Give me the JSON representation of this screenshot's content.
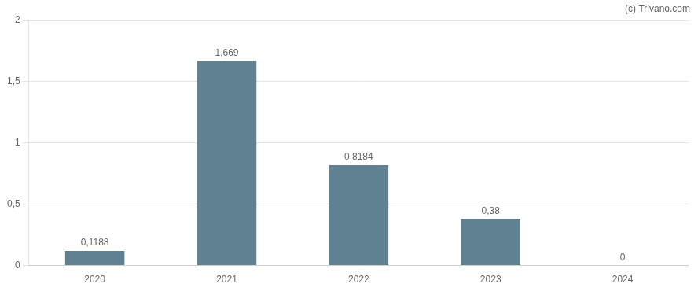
{
  "chart_data": {
    "type": "bar",
    "categories": [
      "2020",
      "2021",
      "2022",
      "2023",
      "2024"
    ],
    "values": [
      0.1188,
      1.669,
      0.8184,
      0.38,
      0
    ],
    "value_labels": [
      "0,1188",
      "1,669",
      "0,8184",
      "0,38",
      "0"
    ],
    "data_labels": true,
    "color": "#5f8191",
    "ylim": [
      0,
      2
    ],
    "yticks": [
      0,
      {
        "value": 0.5,
        "label": "0,5"
      },
      1,
      {
        "value": 1.5,
        "label": "1,5"
      },
      2
    ],
    "grid": true,
    "annotations": [
      "(c) Trivano.com"
    ]
  }
}
